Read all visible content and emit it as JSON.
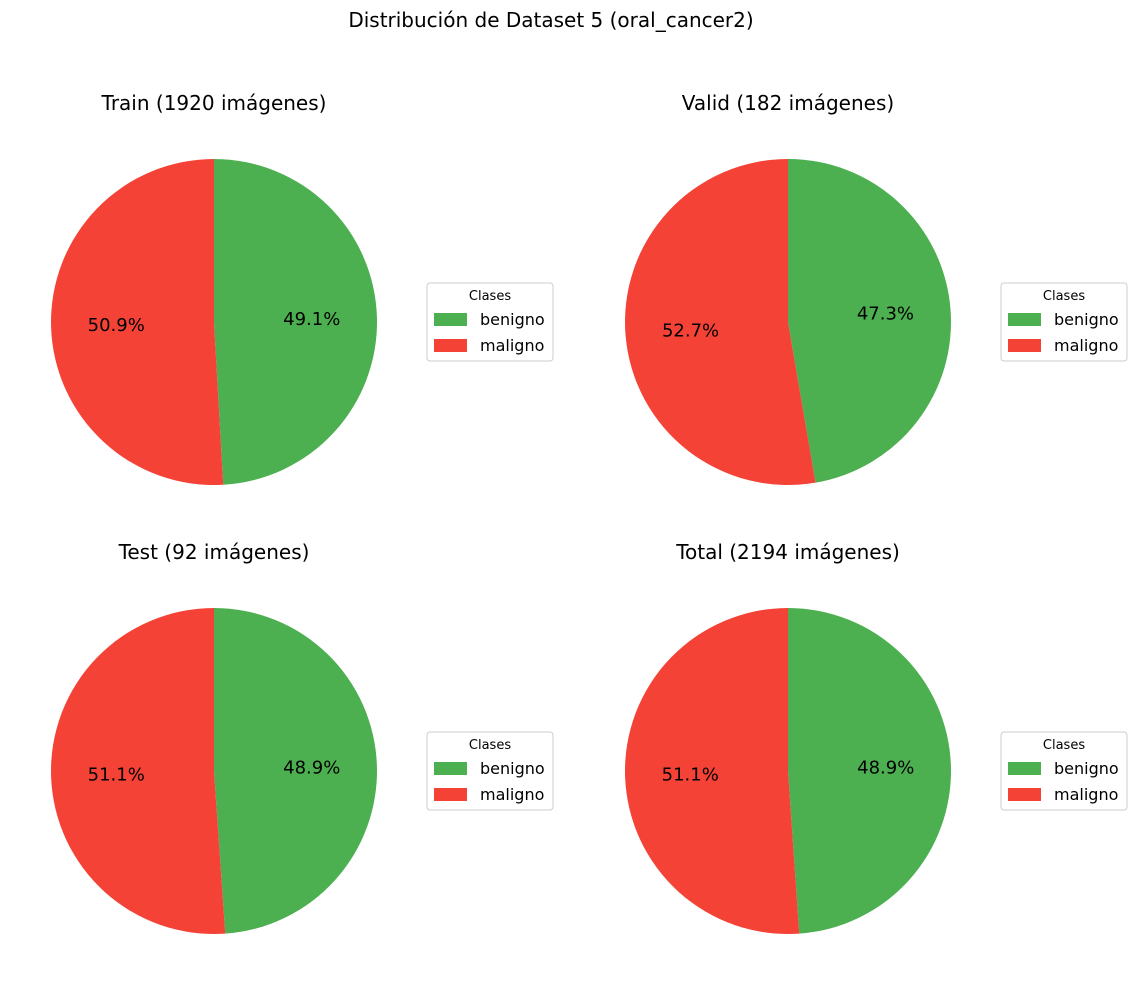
{
  "figure": {
    "title": "Distribución de Dataset 5 (oral_cancer2)"
  },
  "colors": {
    "benigno": "#4caf50",
    "maligno": "#f44336"
  },
  "chart_data": [
    {
      "type": "pie",
      "title": "Train (1920 imágenes)",
      "labels": [
        "benigno",
        "maligno"
      ],
      "values": [
        49.1,
        50.9
      ],
      "value_labels": [
        "49.1%",
        "50.9%"
      ],
      "legend": {
        "title": "Clases",
        "entries": [
          "benigno",
          "maligno"
        ],
        "placement": "right"
      }
    },
    {
      "type": "pie",
      "title": "Valid (182 imágenes)",
      "labels": [
        "benigno",
        "maligno"
      ],
      "values": [
        47.3,
        52.7
      ],
      "value_labels": [
        "47.3%",
        "52.7%"
      ],
      "legend": {
        "title": "Clases",
        "entries": [
          "benigno",
          "maligno"
        ],
        "placement": "right"
      }
    },
    {
      "type": "pie",
      "title": "Test (92 imágenes)",
      "labels": [
        "benigno",
        "maligno"
      ],
      "values": [
        48.9,
        51.1
      ],
      "value_labels": [
        "48.9%",
        "51.1%"
      ],
      "legend": {
        "title": "Clases",
        "entries": [
          "benigno",
          "maligno"
        ],
        "placement": "right"
      }
    },
    {
      "type": "pie",
      "title": "Total (2194 imágenes)",
      "labels": [
        "benigno",
        "maligno"
      ],
      "values": [
        48.9,
        51.1
      ],
      "value_labels": [
        "48.9%",
        "51.1%"
      ],
      "legend": {
        "title": "Clases",
        "entries": [
          "benigno",
          "maligno"
        ],
        "placement": "right"
      }
    }
  ]
}
